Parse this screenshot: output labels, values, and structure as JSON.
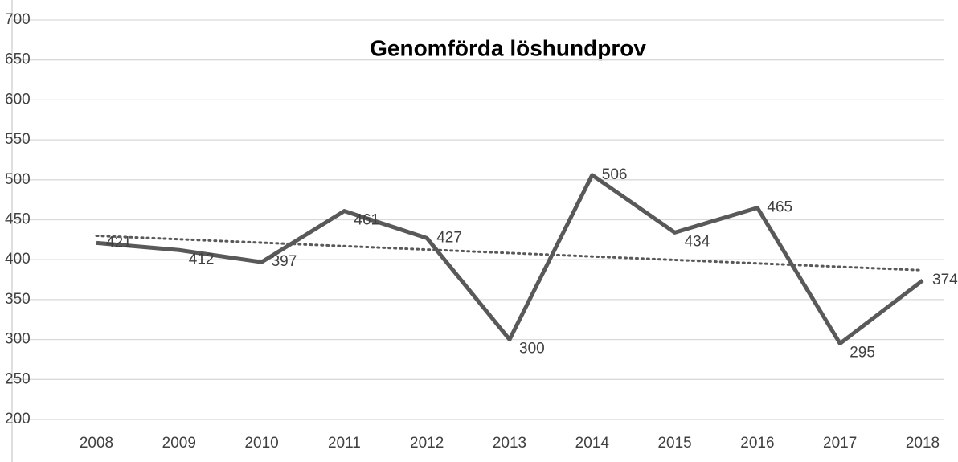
{
  "chart_data": {
    "type": "line",
    "title": "Genomförda löshundprov",
    "categories": [
      "2008",
      "2009",
      "2010",
      "2011",
      "2012",
      "2013",
      "2014",
      "2015",
      "2016",
      "2017",
      "2018"
    ],
    "series": [
      {
        "color": "#595959",
        "values": [
          421,
          412,
          397,
          461,
          427,
          300,
          506,
          434,
          465,
          295,
          374
        ]
      }
    ],
    "trendline": {
      "style": "dotted",
      "color": "#595959",
      "values": [
        429.9,
        386.8
      ]
    },
    "ylim": [
      200,
      700
    ],
    "yticks": [
      200,
      250,
      300,
      350,
      400,
      450,
      500,
      550,
      600,
      650,
      700
    ],
    "grid": true,
    "data_labels": true
  }
}
